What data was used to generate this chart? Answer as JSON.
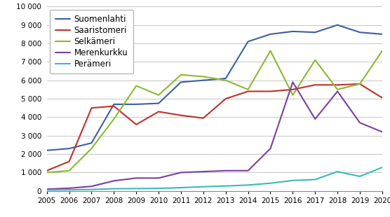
{
  "years": [
    2005,
    2006,
    2007,
    2008,
    2009,
    2010,
    2011,
    2012,
    2013,
    2014,
    2015,
    2016,
    2017,
    2018,
    2019,
    2020
  ],
  "series": [
    {
      "name": "Suomenlahti",
      "color": "#3b5fa8",
      "values": [
        2200,
        2300,
        2600,
        4700,
        4700,
        4750,
        5900,
        6000,
        6100,
        8100,
        8500,
        8650,
        8600,
        9000,
        8600,
        8500
      ]
    },
    {
      "name": "Saaristomeri",
      "color": "#c0302a",
      "values": [
        1100,
        1600,
        4500,
        4600,
        3600,
        4300,
        4100,
        3950,
        5000,
        5400,
        5400,
        5500,
        5750,
        5750,
        5800,
        5050
      ]
    },
    {
      "name": "Selkämeri",
      "color": "#8cb832",
      "values": [
        1000,
        1100,
        2300,
        3900,
        5700,
        5200,
        6300,
        6200,
        6000,
        5500,
        7600,
        5200,
        7100,
        5500,
        5800,
        7600
      ]
    },
    {
      "name": "Merenkurkku",
      "color": "#7b3fa0",
      "values": [
        100,
        150,
        250,
        550,
        700,
        700,
        1000,
        1050,
        1100,
        1100,
        2300,
        5900,
        3900,
        5400,
        3700,
        3200
      ]
    },
    {
      "name": "Perämeri",
      "color": "#3ababa",
      "values": [
        50,
        60,
        80,
        120,
        130,
        140,
        180,
        230,
        270,
        320,
        420,
        570,
        620,
        1050,
        790,
        1280
      ]
    }
  ],
  "ylim": [
    0,
    10000
  ],
  "yticks": [
    0,
    1000,
    2000,
    3000,
    4000,
    5000,
    6000,
    7000,
    8000,
    9000,
    10000
  ],
  "background_color": "#ffffff",
  "grid_color": "#bbbbbb",
  "linewidth": 1.5,
  "tick_fontsize": 7.5,
  "legend_fontsize": 8.5
}
